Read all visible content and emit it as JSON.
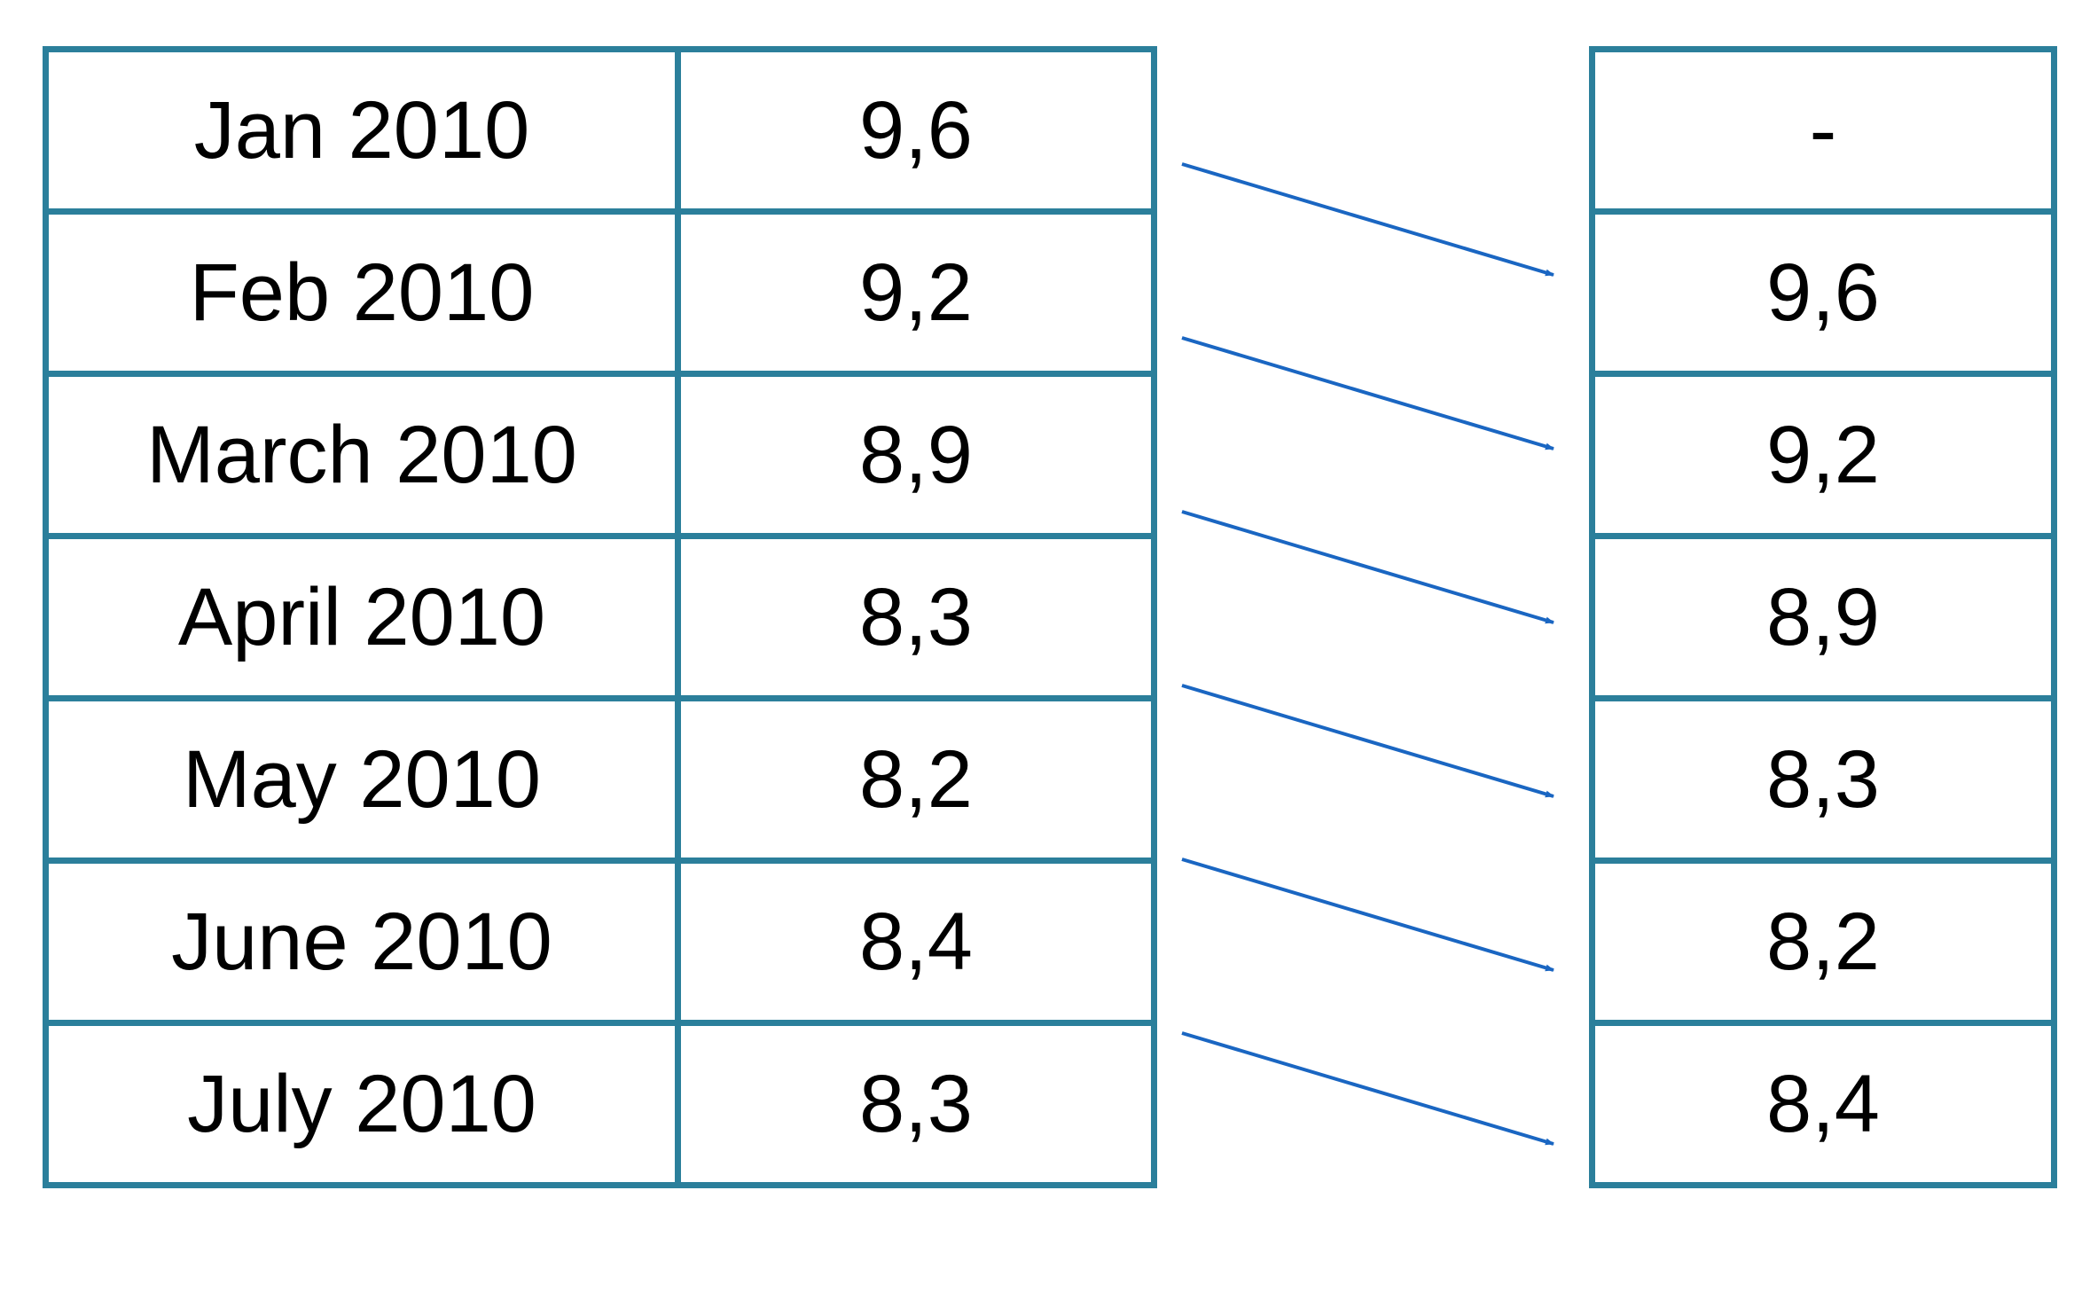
{
  "source_table": {
    "rows": [
      {
        "month": "Jan 2010",
        "value": "9,6"
      },
      {
        "month": "Feb 2010",
        "value": "9,2"
      },
      {
        "month": "March 2010",
        "value": "8,9"
      },
      {
        "month": "April 2010",
        "value": "8,3"
      },
      {
        "month": "May 2010",
        "value": "8,2"
      },
      {
        "month": "June 2010",
        "value": "8,4"
      },
      {
        "month": "July 2010",
        "value": "8,3"
      }
    ]
  },
  "lagged_table": {
    "rows": [
      "-",
      "9,6",
      "9,2",
      "8,9",
      "8,3",
      "8,2",
      "8,4"
    ]
  },
  "colors": {
    "table_border": "#2b7f9b",
    "arrow": "#1a66c2"
  },
  "arrows": {
    "count": 6,
    "meaning": "value of row n shifts to row n+1"
  }
}
